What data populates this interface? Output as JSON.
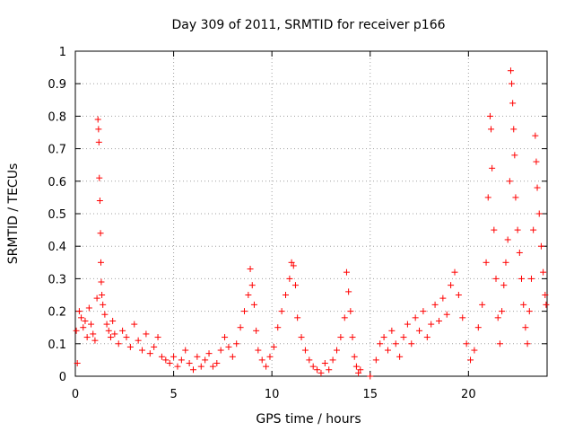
{
  "chart_data": {
    "type": "scatter",
    "title": "Day 309 of 2011, SRMTID for receiver p166",
    "xlabel": "GPS time / hours",
    "ylabel": "SRMTID / TECUs",
    "xlim": [
      0,
      24
    ],
    "ylim": [
      0,
      1
    ],
    "xticks": [
      "0",
      "5",
      "10",
      "15",
      "20"
    ],
    "xtick_values": [
      0,
      5,
      10,
      15,
      20
    ],
    "yticks": [
      "0",
      "0.1",
      "0.2",
      "0.3",
      "0.4",
      "0.5",
      "0.6",
      "0.7",
      "0.8",
      "0.9",
      "1"
    ],
    "ytick_values": [
      0,
      0.1,
      0.2,
      0.3,
      0.4,
      0.5,
      0.6,
      0.7,
      0.8,
      0.9,
      1.0
    ],
    "grid": true,
    "marker": "plus",
    "color": "#ff0000",
    "series": [
      {
        "name": "SRMTID",
        "points": [
          [
            0.05,
            0.14
          ],
          [
            0.1,
            0.04
          ],
          [
            0.2,
            0.2
          ],
          [
            0.3,
            0.18
          ],
          [
            0.4,
            0.15
          ],
          [
            0.5,
            0.17
          ],
          [
            0.6,
            0.12
          ],
          [
            0.7,
            0.21
          ],
          [
            0.8,
            0.16
          ],
          [
            0.9,
            0.13
          ],
          [
            1.0,
            0.11
          ],
          [
            1.1,
            0.24
          ],
          [
            1.15,
            0.79
          ],
          [
            1.18,
            0.76
          ],
          [
            1.2,
            0.72
          ],
          [
            1.22,
            0.61
          ],
          [
            1.25,
            0.54
          ],
          [
            1.28,
            0.44
          ],
          [
            1.3,
            0.35
          ],
          [
            1.32,
            0.29
          ],
          [
            1.35,
            0.25
          ],
          [
            1.4,
            0.22
          ],
          [
            1.5,
            0.19
          ],
          [
            1.6,
            0.16
          ],
          [
            1.7,
            0.14
          ],
          [
            1.8,
            0.12
          ],
          [
            1.9,
            0.17
          ],
          [
            2.0,
            0.13
          ],
          [
            2.2,
            0.1
          ],
          [
            2.4,
            0.14
          ],
          [
            2.6,
            0.12
          ],
          [
            2.8,
            0.09
          ],
          [
            3.0,
            0.16
          ],
          [
            3.2,
            0.11
          ],
          [
            3.4,
            0.08
          ],
          [
            3.6,
            0.13
          ],
          [
            3.8,
            0.07
          ],
          [
            4.0,
            0.09
          ],
          [
            4.2,
            0.12
          ],
          [
            4.4,
            0.06
          ],
          [
            4.6,
            0.05
          ],
          [
            4.8,
            0.04
          ],
          [
            5.0,
            0.06
          ],
          [
            5.2,
            0.03
          ],
          [
            5.4,
            0.05
          ],
          [
            5.6,
            0.08
          ],
          [
            5.8,
            0.04
          ],
          [
            6.0,
            0.02
          ],
          [
            6.2,
            0.06
          ],
          [
            6.4,
            0.03
          ],
          [
            6.6,
            0.05
          ],
          [
            6.8,
            0.07
          ],
          [
            7.0,
            0.03
          ],
          [
            7.2,
            0.04
          ],
          [
            7.4,
            0.08
          ],
          [
            7.6,
            0.12
          ],
          [
            7.8,
            0.09
          ],
          [
            8.0,
            0.06
          ],
          [
            8.2,
            0.1
          ],
          [
            8.4,
            0.15
          ],
          [
            8.6,
            0.2
          ],
          [
            8.8,
            0.25
          ],
          [
            8.9,
            0.33
          ],
          [
            9.0,
            0.28
          ],
          [
            9.1,
            0.22
          ],
          [
            9.2,
            0.14
          ],
          [
            9.3,
            0.08
          ],
          [
            9.5,
            0.05
          ],
          [
            9.7,
            0.03
          ],
          [
            9.9,
            0.06
          ],
          [
            10.1,
            0.09
          ],
          [
            10.3,
            0.15
          ],
          [
            10.5,
            0.2
          ],
          [
            10.7,
            0.25
          ],
          [
            10.9,
            0.3
          ],
          [
            11.0,
            0.35
          ],
          [
            11.1,
            0.34
          ],
          [
            11.2,
            0.28
          ],
          [
            11.3,
            0.18
          ],
          [
            11.5,
            0.12
          ],
          [
            11.7,
            0.08
          ],
          [
            11.9,
            0.05
          ],
          [
            12.1,
            0.03
          ],
          [
            12.3,
            0.02
          ],
          [
            12.5,
            0.01
          ],
          [
            12.7,
            0.04
          ],
          [
            12.9,
            0.02
          ],
          [
            13.1,
            0.05
          ],
          [
            13.3,
            0.08
          ],
          [
            13.5,
            0.12
          ],
          [
            13.7,
            0.18
          ],
          [
            13.8,
            0.32
          ],
          [
            13.9,
            0.26
          ],
          [
            14.0,
            0.2
          ],
          [
            14.1,
            0.12
          ],
          [
            14.2,
            0.06
          ],
          [
            14.3,
            0.03
          ],
          [
            14.4,
            0.01
          ],
          [
            14.5,
            0.02
          ],
          [
            15.0,
            0.0
          ],
          [
            15.3,
            0.05
          ],
          [
            15.5,
            0.1
          ],
          [
            15.7,
            0.12
          ],
          [
            15.9,
            0.08
          ],
          [
            16.1,
            0.14
          ],
          [
            16.3,
            0.1
          ],
          [
            16.5,
            0.06
          ],
          [
            16.7,
            0.12
          ],
          [
            16.9,
            0.16
          ],
          [
            17.1,
            0.1
          ],
          [
            17.3,
            0.18
          ],
          [
            17.5,
            0.14
          ],
          [
            17.7,
            0.2
          ],
          [
            17.9,
            0.12
          ],
          [
            18.1,
            0.16
          ],
          [
            18.3,
            0.22
          ],
          [
            18.5,
            0.17
          ],
          [
            18.7,
            0.24
          ],
          [
            18.9,
            0.19
          ],
          [
            19.1,
            0.28
          ],
          [
            19.3,
            0.32
          ],
          [
            19.5,
            0.25
          ],
          [
            19.7,
            0.18
          ],
          [
            19.9,
            0.1
          ],
          [
            20.1,
            0.05
          ],
          [
            20.3,
            0.08
          ],
          [
            20.5,
            0.15
          ],
          [
            20.7,
            0.22
          ],
          [
            20.9,
            0.35
          ],
          [
            21.0,
            0.55
          ],
          [
            21.1,
            0.8
          ],
          [
            21.15,
            0.76
          ],
          [
            21.2,
            0.64
          ],
          [
            21.3,
            0.45
          ],
          [
            21.4,
            0.3
          ],
          [
            21.5,
            0.18
          ],
          [
            21.6,
            0.1
          ],
          [
            21.7,
            0.2
          ],
          [
            21.8,
            0.28
          ],
          [
            21.9,
            0.35
          ],
          [
            22.0,
            0.42
          ],
          [
            22.1,
            0.6
          ],
          [
            22.15,
            0.94
          ],
          [
            22.2,
            0.9
          ],
          [
            22.25,
            0.84
          ],
          [
            22.3,
            0.76
          ],
          [
            22.35,
            0.68
          ],
          [
            22.4,
            0.55
          ],
          [
            22.5,
            0.45
          ],
          [
            22.6,
            0.38
          ],
          [
            22.7,
            0.3
          ],
          [
            22.8,
            0.22
          ],
          [
            22.9,
            0.15
          ],
          [
            23.0,
            0.1
          ],
          [
            23.1,
            0.2
          ],
          [
            23.2,
            0.3
          ],
          [
            23.3,
            0.45
          ],
          [
            23.4,
            0.74
          ],
          [
            23.45,
            0.66
          ],
          [
            23.5,
            0.58
          ],
          [
            23.6,
            0.5
          ],
          [
            23.7,
            0.4
          ],
          [
            23.8,
            0.32
          ],
          [
            23.9,
            0.25
          ],
          [
            23.95,
            0.22
          ]
        ]
      }
    ]
  }
}
